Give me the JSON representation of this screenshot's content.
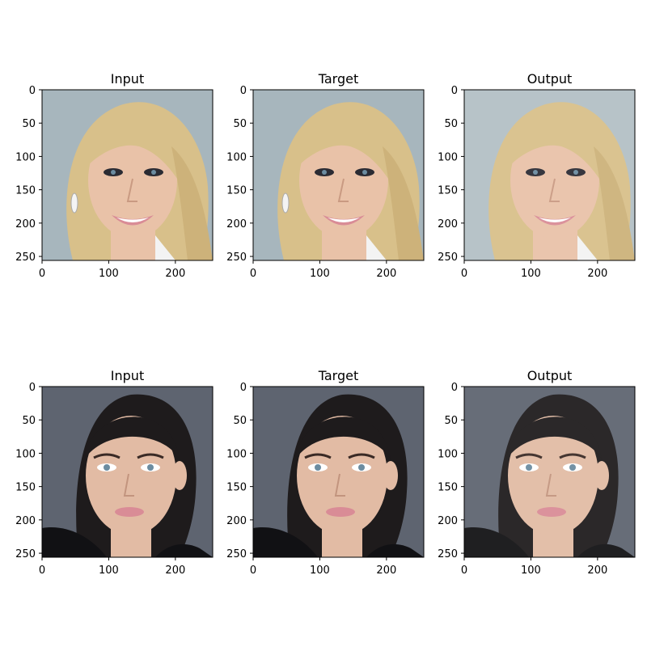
{
  "panels": [
    {
      "title": "Input",
      "subject": "blonde-woman-smiling",
      "tone": "light"
    },
    {
      "title": "Target",
      "subject": "blonde-woman-smiling",
      "tone": "light"
    },
    {
      "title": "Output",
      "subject": "blonde-woman-smiling",
      "tone": "light-soft"
    },
    {
      "title": "Input",
      "subject": "dark-haired-woman-neutral",
      "tone": "dark"
    },
    {
      "title": "Target",
      "subject": "dark-haired-woman-neutral",
      "tone": "dark"
    },
    {
      "title": "Output",
      "subject": "dark-haired-woman-neutral",
      "tone": "dark-soft"
    }
  ],
  "axes": {
    "x_ticks": [
      "0",
      "100",
      "200"
    ],
    "y_ticks": [
      "0",
      "50",
      "100",
      "150",
      "200",
      "250"
    ]
  },
  "colors": {
    "bg_light": "#a7b6bd",
    "bg_light_soft": "#b3c0c5",
    "hair_blonde": "#d8c08a",
    "skin_light": "#e9c2a8",
    "bg_dark": "#5e6470",
    "hair_dark": "#1e1b1c",
    "skin_dark": "#e2bba4",
    "lips": "#d98c96",
    "eyes": "#6c8ca0"
  }
}
